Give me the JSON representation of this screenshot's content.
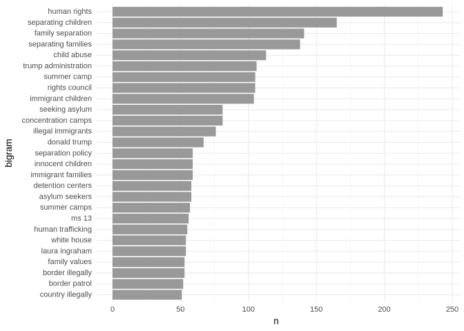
{
  "chart_data": {
    "type": "bar",
    "orientation": "horizontal",
    "xlabel": "n",
    "ylabel": "bigram",
    "xlim": [
      0,
      250
    ],
    "xticks": [
      0,
      50,
      100,
      150,
      200,
      250
    ],
    "grid": true,
    "bar_color": "#999999",
    "categories": [
      "human rights",
      "separating children",
      "family separation",
      "separating families",
      "child abuse",
      "trump administration",
      "summer camp",
      "rights council",
      "immigrant children",
      "seeking asylum",
      "concentration camps",
      "illegal immigrants",
      "donald trump",
      "separation policy",
      "innocent children",
      "immigrant families",
      "detention centers",
      "asylum seekers",
      "summer camps",
      "ms 13",
      "human trafficking",
      "white house",
      "laura ingraham",
      "family values",
      "border illegally",
      "border patrol",
      "country illegally"
    ],
    "values": [
      243,
      165,
      141,
      138,
      113,
      106,
      105,
      105,
      104,
      81,
      81,
      76,
      67,
      59,
      59,
      59,
      58,
      58,
      57,
      56,
      55,
      54,
      54,
      53,
      53,
      52,
      51
    ]
  }
}
